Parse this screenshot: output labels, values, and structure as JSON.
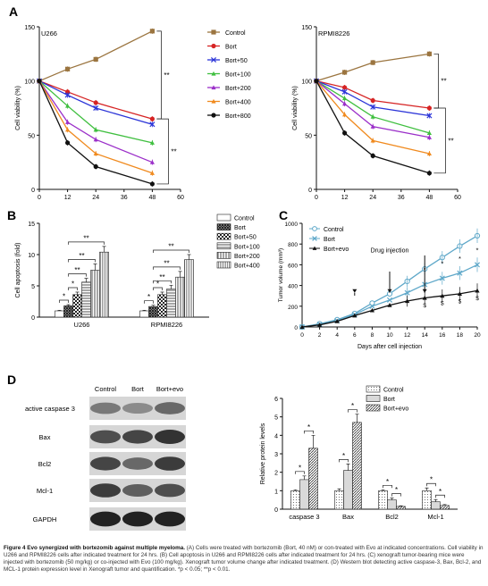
{
  "panels": {
    "A": "A",
    "B": "B",
    "C": "C",
    "D": "D"
  },
  "caption": {
    "bold_lead": "Figure 4 Evo synergized with bortezomib against multiple myeloma.",
    "text": " (A) Cells were treated with bortezomib (Bort, 40 nM) or con-treated with Evo at indicated concentrations. Cell viability in U266 and RPMI8226 cells after indicated treatment for 24 hrs. (B) Cell apoptosis in U266 and RPMI8226 cells after indicated treatment for 24 hrs. (C) xenograft tumor-bearing mice were injected with bortezomib (50 mg/kg) or co-injected with Evo (100 mg/kg). Xenograft tumor volume change after indicated treatment. (D) Western blot detecting active caspase-3, Bax, Bcl-2, and MCL-1 protein expression level in Xenograft tumor and quantification. *p < 0.05; **p < 0.01."
  },
  "chart_data": [
    {
      "panel": "A",
      "type": "line",
      "title": "U266",
      "xlabel": "",
      "ylabel": "Cell viability (%)",
      "xlim": [
        0,
        60
      ],
      "ylim": [
        0,
        150
      ],
      "xticks": [
        0,
        12,
        24,
        36,
        48,
        60
      ],
      "yticks": [
        0,
        50,
        100,
        150
      ],
      "x": [
        0,
        12,
        24,
        48
      ],
      "series": [
        {
          "name": "Control",
          "color": "#9b7540",
          "marker": "square",
          "values": [
            100,
            111,
            120,
            146
          ]
        },
        {
          "name": "Bort",
          "color": "#d62424",
          "marker": "circle",
          "values": [
            100,
            90,
            80,
            65
          ]
        },
        {
          "name": "Bort+50",
          "color": "#2b34d8",
          "marker": "x",
          "values": [
            100,
            87,
            75,
            60
          ]
        },
        {
          "name": "Bort+100",
          "color": "#3fbf3f",
          "marker": "triangle",
          "values": [
            100,
            77,
            55,
            43
          ]
        },
        {
          "name": "Bort+200",
          "color": "#9b2fc9",
          "marker": "triangle",
          "values": [
            100,
            62,
            46,
            25
          ]
        },
        {
          "name": "Bort+400",
          "color": "#f08a1e",
          "marker": "triangle",
          "values": [
            100,
            55,
            33,
            15
          ]
        },
        {
          "name": "Bort+800",
          "color": "#111111",
          "marker": "circle",
          "values": [
            100,
            43,
            21,
            5
          ]
        }
      ],
      "significance": [
        {
          "label": "**",
          "from": "Control",
          "to": "Bort"
        },
        {
          "label": "**",
          "from": "Bort",
          "to": "Bort+800"
        }
      ],
      "legend_position": "right"
    },
    {
      "panel": "A",
      "type": "line",
      "title": "RPMI8226",
      "xlabel": "",
      "ylabel": "Cell viability (%)",
      "xlim": [
        0,
        60
      ],
      "ylim": [
        0,
        150
      ],
      "xticks": [
        0,
        12,
        24,
        36,
        48,
        60
      ],
      "yticks": [
        0,
        50,
        100,
        150
      ],
      "x": [
        0,
        12,
        24,
        48
      ],
      "series": [
        {
          "name": "Control",
          "color": "#9b7540",
          "marker": "square",
          "values": [
            100,
            108,
            117,
            125
          ]
        },
        {
          "name": "Bort",
          "color": "#d62424",
          "marker": "circle",
          "values": [
            100,
            94,
            82,
            75
          ]
        },
        {
          "name": "Bort+50",
          "color": "#2b34d8",
          "marker": "x",
          "values": [
            100,
            90,
            76,
            68
          ]
        },
        {
          "name": "Bort+100",
          "color": "#3fbf3f",
          "marker": "triangle",
          "values": [
            100,
            84,
            67,
            52
          ]
        },
        {
          "name": "Bort+200",
          "color": "#9b2fc9",
          "marker": "triangle",
          "values": [
            100,
            79,
            58,
            48
          ]
        },
        {
          "name": "Bort+400",
          "color": "#f08a1e",
          "marker": "triangle",
          "values": [
            100,
            69,
            45,
            33
          ]
        },
        {
          "name": "Bort+800",
          "color": "#111111",
          "marker": "circle",
          "values": [
            100,
            52,
            31,
            15
          ]
        }
      ],
      "significance": [
        {
          "label": "**",
          "from": "Control",
          "to": "Bort"
        },
        {
          "label": "**",
          "from": "Bort",
          "to": "Bort+800"
        }
      ]
    },
    {
      "panel": "B",
      "type": "bar",
      "title": "",
      "xlabel": "",
      "ylabel": "Cell apoptosis (fold)",
      "ylim": [
        0,
        15
      ],
      "yticks": [
        0,
        5,
        10,
        15
      ],
      "categories": [
        "U266",
        "RPMI8226"
      ],
      "series": [
        {
          "name": "Control",
          "pattern": "plain",
          "values": [
            1.0,
            1.0
          ]
        },
        {
          "name": "Bort",
          "pattern": "dense",
          "values": [
            1.8,
            1.7
          ]
        },
        {
          "name": "Bort+50",
          "pattern": "checker",
          "values": [
            3.6,
            3.6
          ]
        },
        {
          "name": "Bort+100",
          "pattern": "hlines",
          "values": [
            5.6,
            4.5
          ]
        },
        {
          "name": "Bort+200",
          "pattern": "vlines",
          "values": [
            7.5,
            6.4
          ]
        },
        {
          "name": "Bort+400",
          "pattern": "vlines-fine",
          "values": [
            10.4,
            9.2
          ]
        }
      ],
      "errors": [
        [
          0.1,
          0.1
        ],
        [
          0.2,
          0.2
        ],
        [
          0.4,
          0.4
        ],
        [
          0.6,
          0.6
        ],
        [
          1.0,
          0.9
        ],
        [
          0.9,
          0.8
        ]
      ],
      "significance": [
        {
          "group": 0,
          "from": 0,
          "to": 1,
          "label": "*"
        },
        {
          "group": 0,
          "from": 1,
          "to": 2,
          "label": "*"
        },
        {
          "group": 0,
          "from": 1,
          "to": 3,
          "label": "**"
        },
        {
          "group": 0,
          "from": 1,
          "to": 4,
          "label": "**"
        },
        {
          "group": 0,
          "from": 1,
          "to": 5,
          "label": "**"
        },
        {
          "group": 1,
          "from": 0,
          "to": 1,
          "label": "*"
        },
        {
          "group": 1,
          "from": 1,
          "to": 2,
          "label": "*"
        },
        {
          "group": 1,
          "from": 1,
          "to": 3,
          "label": "**"
        },
        {
          "group": 1,
          "from": 1,
          "to": 4,
          "label": "**"
        },
        {
          "group": 1,
          "from": 1,
          "to": 5,
          "label": "**"
        }
      ],
      "legend_position": "right"
    },
    {
      "panel": "C",
      "type": "line",
      "title": "",
      "xlabel": "Days after cell injection",
      "ylabel": "Tumor volume (mm³)",
      "xlim": [
        0,
        20
      ],
      "ylim": [
        0,
        1000
      ],
      "xticks": [
        0,
        2,
        4,
        6,
        8,
        10,
        12,
        14,
        16,
        18,
        20
      ],
      "yticks": [
        0,
        200,
        400,
        600,
        800,
        1000
      ],
      "x": [
        0,
        2,
        4,
        6,
        8,
        10,
        12,
        14,
        16,
        18,
        20
      ],
      "series": [
        {
          "name": "Control",
          "color": "#5fa8c9",
          "marker": "circle-open",
          "values": [
            0,
            30,
            70,
            130,
            230,
            320,
            440,
            560,
            670,
            780,
            880
          ]
        },
        {
          "name": "Bort",
          "color": "#5fa8c9",
          "marker": "x",
          "values": [
            0,
            25,
            60,
            120,
            200,
            260,
            330,
            410,
            470,
            520,
            600
          ]
        },
        {
          "name": "Bort+evo",
          "color": "#111111",
          "marker": "triangle",
          "values": [
            0,
            20,
            55,
            110,
            160,
            210,
            250,
            280,
            300,
            320,
            350
          ]
        }
      ],
      "annotation": "Drug injection",
      "injection_days": [
        6,
        10,
        14
      ],
      "marks_star": [
        "*",
        "*",
        "*",
        "*"
      ],
      "marks_dollar": [
        "$",
        "$",
        "$",
        "$"
      ],
      "legend_position": "top-left"
    },
    {
      "panel": "D",
      "type": "bar",
      "title": "",
      "xlabel": "",
      "ylabel": "Relative protein levels",
      "ylim": [
        0,
        6
      ],
      "yticks": [
        0,
        1,
        2,
        3,
        4,
        5,
        6
      ],
      "categories": [
        "caspase 3",
        "Bax",
        "Bcl2",
        "Mcl-1"
      ],
      "series": [
        {
          "name": "Control",
          "pattern": "dots",
          "values": [
            1.0,
            1.0,
            1.0,
            1.0
          ]
        },
        {
          "name": "Bort",
          "pattern": "dots-dense",
          "values": [
            1.6,
            2.1,
            0.5,
            0.4
          ]
        },
        {
          "name": "Bort+evo",
          "pattern": "diagonal",
          "values": [
            3.3,
            4.7,
            0.15,
            0.2
          ]
        }
      ],
      "errors": [
        [
          0.05,
          0.1,
          0.05,
          0.15
        ],
        [
          0.2,
          0.35,
          0.1,
          0.12
        ],
        [
          0.7,
          0.45,
          0.03,
          0.05
        ]
      ],
      "significance": [
        {
          "group": 0,
          "from": 0,
          "to": 1,
          "label": "*"
        },
        {
          "group": 0,
          "from": 1,
          "to": 2,
          "label": "*"
        },
        {
          "group": 1,
          "from": 0,
          "to": 1,
          "label": "*"
        },
        {
          "group": 1,
          "from": 1,
          "to": 2,
          "label": "*"
        },
        {
          "group": 2,
          "from": 0,
          "to": 1,
          "label": "*"
        },
        {
          "group": 2,
          "from": 1,
          "to": 2,
          "label": "*"
        },
        {
          "group": 3,
          "from": 0,
          "to": 1,
          "label": "*"
        },
        {
          "group": 3,
          "from": 1,
          "to": 2,
          "label": "*"
        }
      ],
      "legend_position": "top-right"
    }
  ],
  "western_blot": {
    "columns": [
      "Control",
      "Bort",
      "Bort+evo"
    ],
    "rows": [
      "active caspase 3",
      "Bax",
      "Bcl2",
      "Mcl-1",
      "GAPDH"
    ],
    "intensity": [
      [
        0.45,
        0.35,
        0.55
      ],
      [
        0.7,
        0.75,
        0.85
      ],
      [
        0.75,
        0.55,
        0.8
      ],
      [
        0.8,
        0.6,
        0.7
      ],
      [
        0.95,
        0.95,
        0.95
      ]
    ]
  }
}
